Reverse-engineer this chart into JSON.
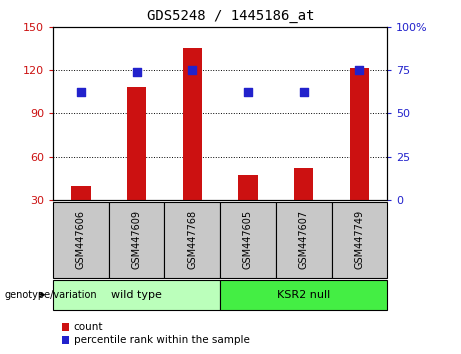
{
  "title": "GDS5248 / 1445186_at",
  "samples": [
    "GSM447606",
    "GSM447609",
    "GSM447768",
    "GSM447605",
    "GSM447607",
    "GSM447749"
  ],
  "counts": [
    40,
    108,
    135,
    47,
    52,
    121
  ],
  "percentiles": [
    62,
    74,
    75,
    62,
    62,
    75
  ],
  "ylim_left": [
    30,
    150
  ],
  "ylim_right": [
    0,
    100
  ],
  "yticks_left": [
    30,
    60,
    90,
    120,
    150
  ],
  "yticks_right": [
    0,
    25,
    50,
    75,
    100
  ],
  "yticklabels_right": [
    "0",
    "25",
    "50",
    "75",
    "100%"
  ],
  "bar_color": "#cc1111",
  "dot_color": "#2222cc",
  "groups": [
    {
      "label": "wild type",
      "indices": [
        0,
        1,
        2
      ],
      "color": "#bbffbb"
    },
    {
      "label": "KSR2 null",
      "indices": [
        3,
        4,
        5
      ],
      "color": "#44ee44"
    }
  ],
  "grid_color": "black",
  "tick_color_left": "#cc1111",
  "tick_color_right": "#2222cc",
  "label_left": "count",
  "label_right": "percentile rank within the sample",
  "genotype_label": "genotype/variation",
  "bg_sample_color": "#c8c8c8",
  "fig_bg": "#ffffff",
  "bar_width": 0.35
}
